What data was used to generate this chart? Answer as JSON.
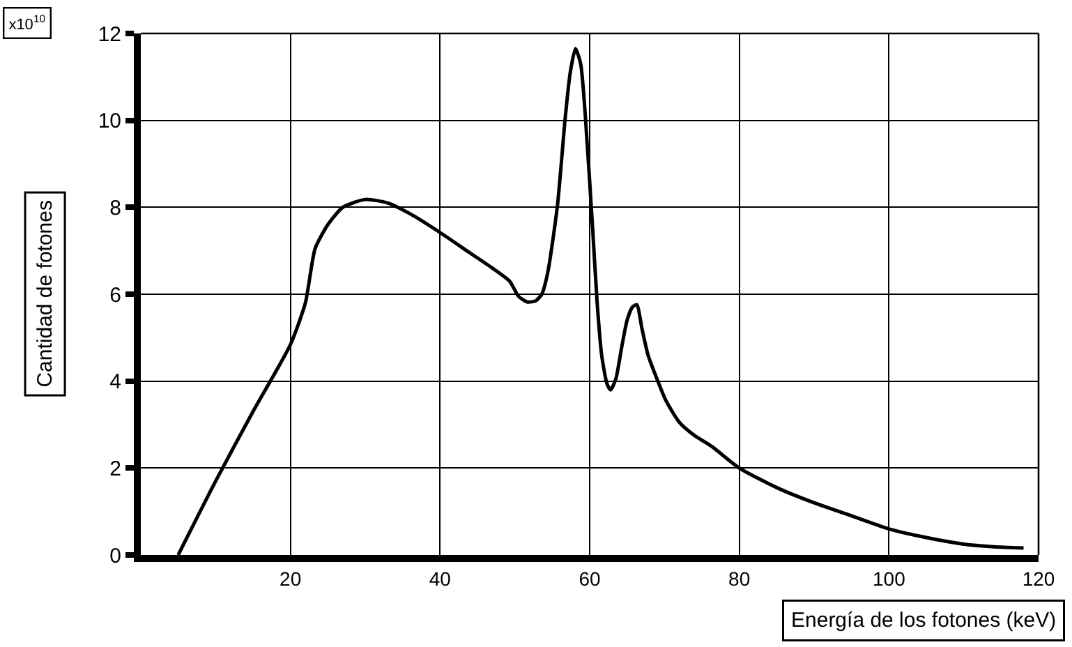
{
  "chart_data": {
    "type": "line",
    "xlabel": "Energía de los fotones (keV)",
    "ylabel": "Cantidad de fotones",
    "annotations": [
      "x10$^{10}$"
    ],
    "series": [
      {
        "color": "#000000",
        "x": [
          5,
          10,
          15,
          20,
          22,
          23.3,
          25,
          27,
          30,
          33,
          36,
          40,
          44,
          47,
          49.3,
          50.5,
          51.7,
          52.8,
          53.6,
          54.4,
          55.7,
          56.7,
          57.4,
          58.1,
          58.8,
          59.4,
          60.4,
          61,
          61.6,
          62.3,
          62.8,
          63.5,
          64.3,
          65,
          65.7,
          66.3,
          67,
          67.8,
          69,
          70.2,
          72,
          74,
          76.3,
          80,
          85,
          90,
          95,
          100,
          105,
          110,
          114,
          118
        ],
        "values": [
          0,
          1.7,
          3.3,
          4.84,
          5.8,
          7.05,
          7.6,
          8.0,
          8.18,
          8.1,
          7.85,
          7.42,
          6.95,
          6.6,
          6.3,
          5.95,
          5.82,
          5.85,
          6.0,
          6.5,
          8.05,
          10.0,
          11.1,
          11.65,
          11.3,
          10.15,
          7.5,
          5.8,
          4.6,
          3.95,
          3.8,
          4.05,
          4.8,
          5.4,
          5.7,
          5.76,
          5.2,
          4.6,
          4.05,
          3.55,
          3.05,
          2.75,
          2.5,
          2.0,
          1.55,
          1.2,
          0.9,
          0.6,
          0.4,
          0.25,
          0.19,
          0.16
        ]
      }
    ],
    "xlim": [
      0,
      120
    ],
    "xticks": [
      {
        "value": 0,
        "label": null
      },
      20,
      40,
      60,
      80,
      100,
      120
    ],
    "ylim": [
      0,
      12
    ],
    "yticks": [
      0,
      2,
      4,
      6,
      8,
      10,
      12
    ],
    "grid": true,
    "marker": "none",
    "line_style": "solid"
  }
}
